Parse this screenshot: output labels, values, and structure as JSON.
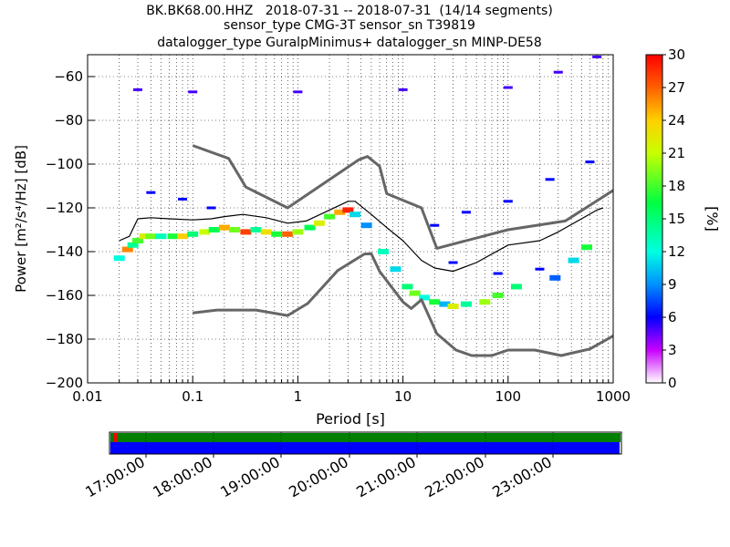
{
  "title_lines": [
    "BK.BK68.00.HHZ   2018-07-31 -- 2018-07-31  (14/14 segments)",
    "sensor_type CMG-3T sensor_sn T39819",
    "datalogger_type GuralpMinimus+ datalogger_sn MINP-DE58"
  ],
  "chart_data": {
    "type": "heatmap",
    "xlabel": "Period [s]",
    "ylabel": "Power [m²/s⁴/Hz] [dB]",
    "x_scale": "log",
    "xlim": [
      0.01,
      1000
    ],
    "ylim": [
      -200,
      -50
    ],
    "x_ticks": [
      0.01,
      0.1,
      1,
      10,
      100,
      1000
    ],
    "x_tick_labels": [
      "0.01",
      "0.1",
      "1",
      "10",
      "100",
      "1000"
    ],
    "y_ticks": [
      -200,
      -180,
      -160,
      -140,
      -120,
      -100,
      -80,
      -60
    ],
    "y_tick_labels": [
      "−200",
      "−180",
      "−160",
      "−140",
      "−120",
      "−100",
      "−80",
      "−60"
    ],
    "grid": true,
    "colorbar": {
      "label": "[%]",
      "range": [
        0,
        30
      ],
      "ticks": [
        0,
        3,
        6,
        9,
        12,
        15,
        18,
        21,
        24,
        27,
        30
      ],
      "tick_labels": [
        "0",
        "3",
        "6",
        "9",
        "12",
        "15",
        "18",
        "21",
        "24",
        "27",
        "30"
      ]
    },
    "high_noise_model": [
      [
        0.1,
        -91.5
      ],
      [
        0.22,
        -97.4
      ],
      [
        0.32,
        -110.5
      ],
      [
        0.8,
        -120
      ],
      [
        3.8,
        -98
      ],
      [
        4.6,
        -96.5
      ],
      [
        6,
        -101
      ],
      [
        7,
        -113.5
      ],
      [
        15,
        -120
      ],
      [
        21,
        -138.5
      ],
      [
        100,
        -130
      ],
      [
        350,
        -126
      ],
      [
        1000,
        -112
      ]
    ],
    "low_noise_model": [
      [
        0.1,
        -168
      ],
      [
        0.17,
        -166.7
      ],
      [
        0.4,
        -166.7
      ],
      [
        0.8,
        -169.2
      ],
      [
        1.24,
        -163.7
      ],
      [
        2.4,
        -148.6
      ],
      [
        4.3,
        -141.1
      ],
      [
        5.0,
        -141
      ],
      [
        6,
        -149
      ],
      [
        10,
        -163
      ],
      [
        12,
        -166
      ],
      [
        15,
        -162
      ],
      [
        21,
        -177.5
      ],
      [
        32,
        -185
      ],
      [
        45,
        -187.5
      ],
      [
        70,
        -187.5
      ],
      [
        100,
        -185
      ],
      [
        180,
        -185
      ],
      [
        320,
        -187.5
      ],
      [
        600,
        -184.5
      ],
      [
        1000,
        -178.5
      ]
    ],
    "mean_curve": [
      [
        0.02,
        -135
      ],
      [
        0.025,
        -133
      ],
      [
        0.03,
        -125
      ],
      [
        0.04,
        -124.5
      ],
      [
        0.06,
        -125
      ],
      [
        0.1,
        -125.5
      ],
      [
        0.15,
        -125
      ],
      [
        0.2,
        -124
      ],
      [
        0.3,
        -123
      ],
      [
        0.5,
        -124.5
      ],
      [
        0.8,
        -127
      ],
      [
        1.2,
        -126
      ],
      [
        2,
        -121
      ],
      [
        3,
        -117
      ],
      [
        3.5,
        -117
      ],
      [
        5,
        -123
      ],
      [
        7,
        -129
      ],
      [
        10,
        -135
      ],
      [
        15,
        -144
      ],
      [
        20,
        -147.5
      ],
      [
        30,
        -149
      ],
      [
        50,
        -145
      ],
      [
        100,
        -137
      ],
      [
        200,
        -135
      ],
      [
        300,
        -131
      ],
      [
        500,
        -125
      ],
      [
        700,
        -121
      ],
      [
        800,
        -120
      ]
    ],
    "density_cells": [
      {
        "x": 0.02,
        "y": -143,
        "p": 12
      },
      {
        "x": 0.024,
        "y": -139,
        "p": 26
      },
      {
        "x": 0.027,
        "y": -137,
        "p": 14
      },
      {
        "x": 0.03,
        "y": -135,
        "p": 18
      },
      {
        "x": 0.035,
        "y": -133,
        "p": 22
      },
      {
        "x": 0.04,
        "y": -133,
        "p": 19
      },
      {
        "x": 0.05,
        "y": -133,
        "p": 13
      },
      {
        "x": 0.065,
        "y": -133,
        "p": 17
      },
      {
        "x": 0.08,
        "y": -133,
        "p": 24
      },
      {
        "x": 0.1,
        "y": -132,
        "p": 15
      },
      {
        "x": 0.13,
        "y": -131,
        "p": 21
      },
      {
        "x": 0.16,
        "y": -130,
        "p": 16
      },
      {
        "x": 0.2,
        "y": -129,
        "p": 25
      },
      {
        "x": 0.25,
        "y": -130,
        "p": 19
      },
      {
        "x": 0.32,
        "y": -131,
        "p": 28
      },
      {
        "x": 0.4,
        "y": -130,
        "p": 14
      },
      {
        "x": 0.5,
        "y": -131,
        "p": 23
      },
      {
        "x": 0.63,
        "y": -132,
        "p": 17
      },
      {
        "x": 0.8,
        "y": -132,
        "p": 27
      },
      {
        "x": 1.0,
        "y": -131,
        "p": 20
      },
      {
        "x": 1.3,
        "y": -129,
        "p": 16
      },
      {
        "x": 1.6,
        "y": -127,
        "p": 22
      },
      {
        "x": 2.0,
        "y": -124,
        "p": 18
      },
      {
        "x": 2.5,
        "y": -122,
        "p": 25
      },
      {
        "x": 3.0,
        "y": -121,
        "p": 29
      },
      {
        "x": 3.5,
        "y": -123,
        "p": 11
      },
      {
        "x": 4.5,
        "y": -128,
        "p": 9
      },
      {
        "x": 6.5,
        "y": -140,
        "p": 13
      },
      {
        "x": 8.5,
        "y": -148,
        "p": 11
      },
      {
        "x": 11,
        "y": -156,
        "p": 15
      },
      {
        "x": 13,
        "y": -159,
        "p": 19
      },
      {
        "x": 16,
        "y": -161,
        "p": 12
      },
      {
        "x": 20,
        "y": -163,
        "p": 17
      },
      {
        "x": 25,
        "y": -164,
        "p": 10
      },
      {
        "x": 30,
        "y": -165,
        "p": 22
      },
      {
        "x": 40,
        "y": -164,
        "p": 14
      },
      {
        "x": 60,
        "y": -163,
        "p": 20
      },
      {
        "x": 80,
        "y": -160,
        "p": 18
      },
      {
        "x": 120,
        "y": -156,
        "p": 15
      },
      {
        "x": 280,
        "y": -152,
        "p": 8
      },
      {
        "x": 420,
        "y": -144,
        "p": 11
      },
      {
        "x": 560,
        "y": -138,
        "p": 17
      }
    ],
    "sparse_cells": [
      {
        "x": 0.03,
        "y": -66,
        "p": 5
      },
      {
        "x": 0.1,
        "y": -67,
        "p": 5
      },
      {
        "x": 1,
        "y": -67,
        "p": 5
      },
      {
        "x": 10,
        "y": -66,
        "p": 5
      },
      {
        "x": 100,
        "y": -65,
        "p": 5
      },
      {
        "x": 300,
        "y": -58,
        "p": 5
      },
      {
        "x": 700,
        "y": -51,
        "p": 5
      },
      {
        "x": 0.04,
        "y": -113,
        "p": 6
      },
      {
        "x": 0.08,
        "y": -116,
        "p": 6
      },
      {
        "x": 0.15,
        "y": -120,
        "p": 6
      },
      {
        "x": 20,
        "y": -128,
        "p": 6
      },
      {
        "x": 40,
        "y": -122,
        "p": 6
      },
      {
        "x": 100,
        "y": -117,
        "p": 6
      },
      {
        "x": 250,
        "y": -107,
        "p": 6
      },
      {
        "x": 600,
        "y": -99,
        "p": 6
      },
      {
        "x": 30,
        "y": -145,
        "p": 6
      },
      {
        "x": 80,
        "y": -150,
        "p": 6
      },
      {
        "x": 200,
        "y": -148,
        "p": 6
      }
    ]
  },
  "timeline": {
    "tick_labels": [
      "17:00:00",
      "18:00:00",
      "19:00:00",
      "20:00:00",
      "21:00:00",
      "22:00:00",
      "23:00:00"
    ]
  }
}
